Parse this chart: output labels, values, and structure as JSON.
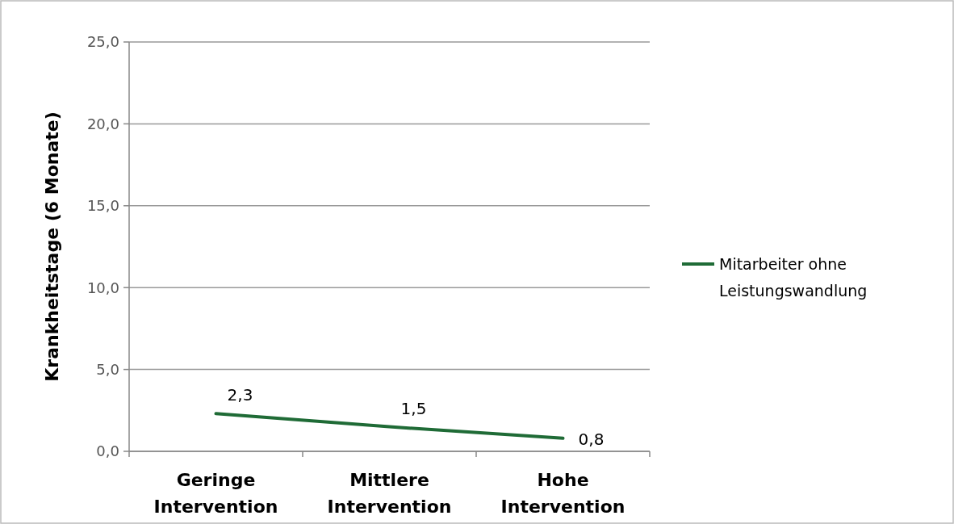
{
  "chart_data": {
    "type": "line",
    "ylabel": "Krankheitstage (6 Monate)",
    "categories": [
      "Geringe Intervention",
      "Mittlere Intervention",
      "Hohe Intervention"
    ],
    "series": [
      {
        "name": "Mitarbeiter ohne Leistungswandlung",
        "color": "#1f6b36",
        "values": [
          2.3,
          1.5,
          0.8
        ],
        "value_labels": [
          "2,3",
          "1,5",
          "0,8"
        ]
      }
    ],
    "ylim": [
      0,
      25
    ],
    "yticks": [
      {
        "value": 0,
        "label": "0,0"
      },
      {
        "value": 5,
        "label": "5,0"
      },
      {
        "value": 10,
        "label": "10,0"
      },
      {
        "value": 15,
        "label": "15,0"
      },
      {
        "value": 20,
        "label": "20,0"
      },
      {
        "value": 25,
        "label": "25,0"
      }
    ],
    "grid": "y",
    "legend": "right",
    "marker": "none",
    "line_style": "solid"
  }
}
